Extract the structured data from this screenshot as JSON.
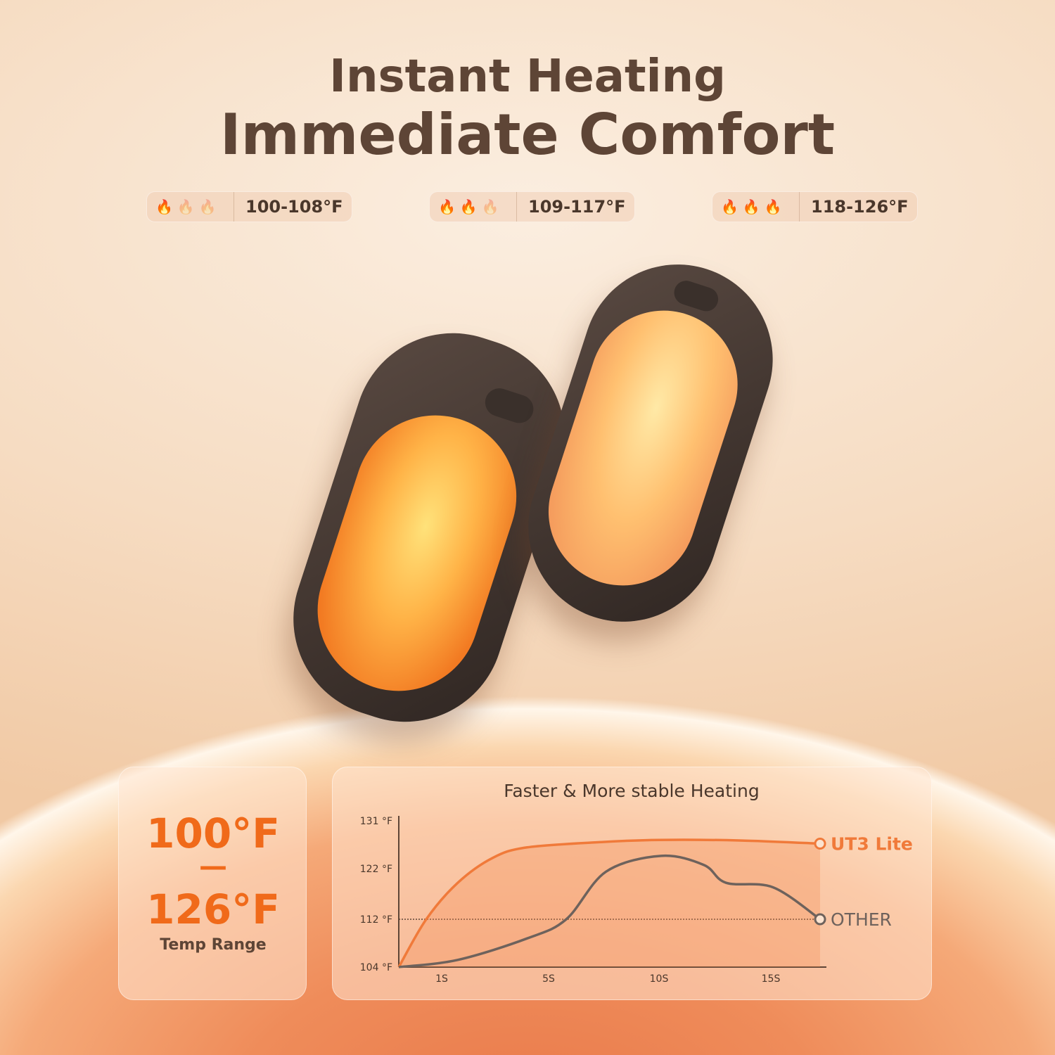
{
  "header": {
    "line1": "Instant Heating",
    "line2": "Immediate Comfort"
  },
  "levels": [
    {
      "range": "100-108°F",
      "active_flames": 1
    },
    {
      "range": "109-117°F",
      "active_flames": 2
    },
    {
      "range": "118-126°F",
      "active_flames": 3
    }
  ],
  "colors": {
    "flame_active": "#f07a1a",
    "flame_level3": "#e83a1a",
    "flame_inactive": "#ecd0b8",
    "accent": "#f06a1a",
    "other": "#6e625c"
  },
  "range_card": {
    "low": "100°F",
    "dash": "—",
    "high": "126°F",
    "label": "Temp Range"
  },
  "chart_data": {
    "type": "line",
    "title": "Faster & More stable Heating",
    "x_ticks": [
      "1S",
      "5S",
      "10S",
      "15S"
    ],
    "x_tick_values": [
      1,
      5,
      10,
      15
    ],
    "y_ticks": [
      "104 °F",
      "112 °F",
      "122 °F",
      "131 °F"
    ],
    "y_tick_values": [
      104,
      112,
      122,
      131
    ],
    "reference_line": 112,
    "series": [
      {
        "name": "UT3 Lite",
        "color": "#f07a3a",
        "points": [
          [
            0,
            104
          ],
          [
            0.64,
            112
          ],
          [
            1.6,
            119.2
          ],
          [
            2.9,
            124
          ],
          [
            4.2,
            126
          ],
          [
            7.4,
            127
          ],
          [
            10,
            127.4
          ],
          [
            13.6,
            127.3
          ],
          [
            17.2,
            126.7
          ]
        ]
      },
      {
        "name": "OTHER",
        "color": "#6e625c",
        "points": [
          [
            0,
            104
          ],
          [
            1.6,
            105.2
          ],
          [
            4.2,
            108.8
          ],
          [
            5.8,
            112
          ],
          [
            7.6,
            121.4
          ],
          [
            10.1,
            124.4
          ],
          [
            12,
            122.7
          ],
          [
            13,
            119.2
          ],
          [
            15.1,
            118.3
          ],
          [
            17.2,
            112
          ]
        ]
      }
    ]
  }
}
